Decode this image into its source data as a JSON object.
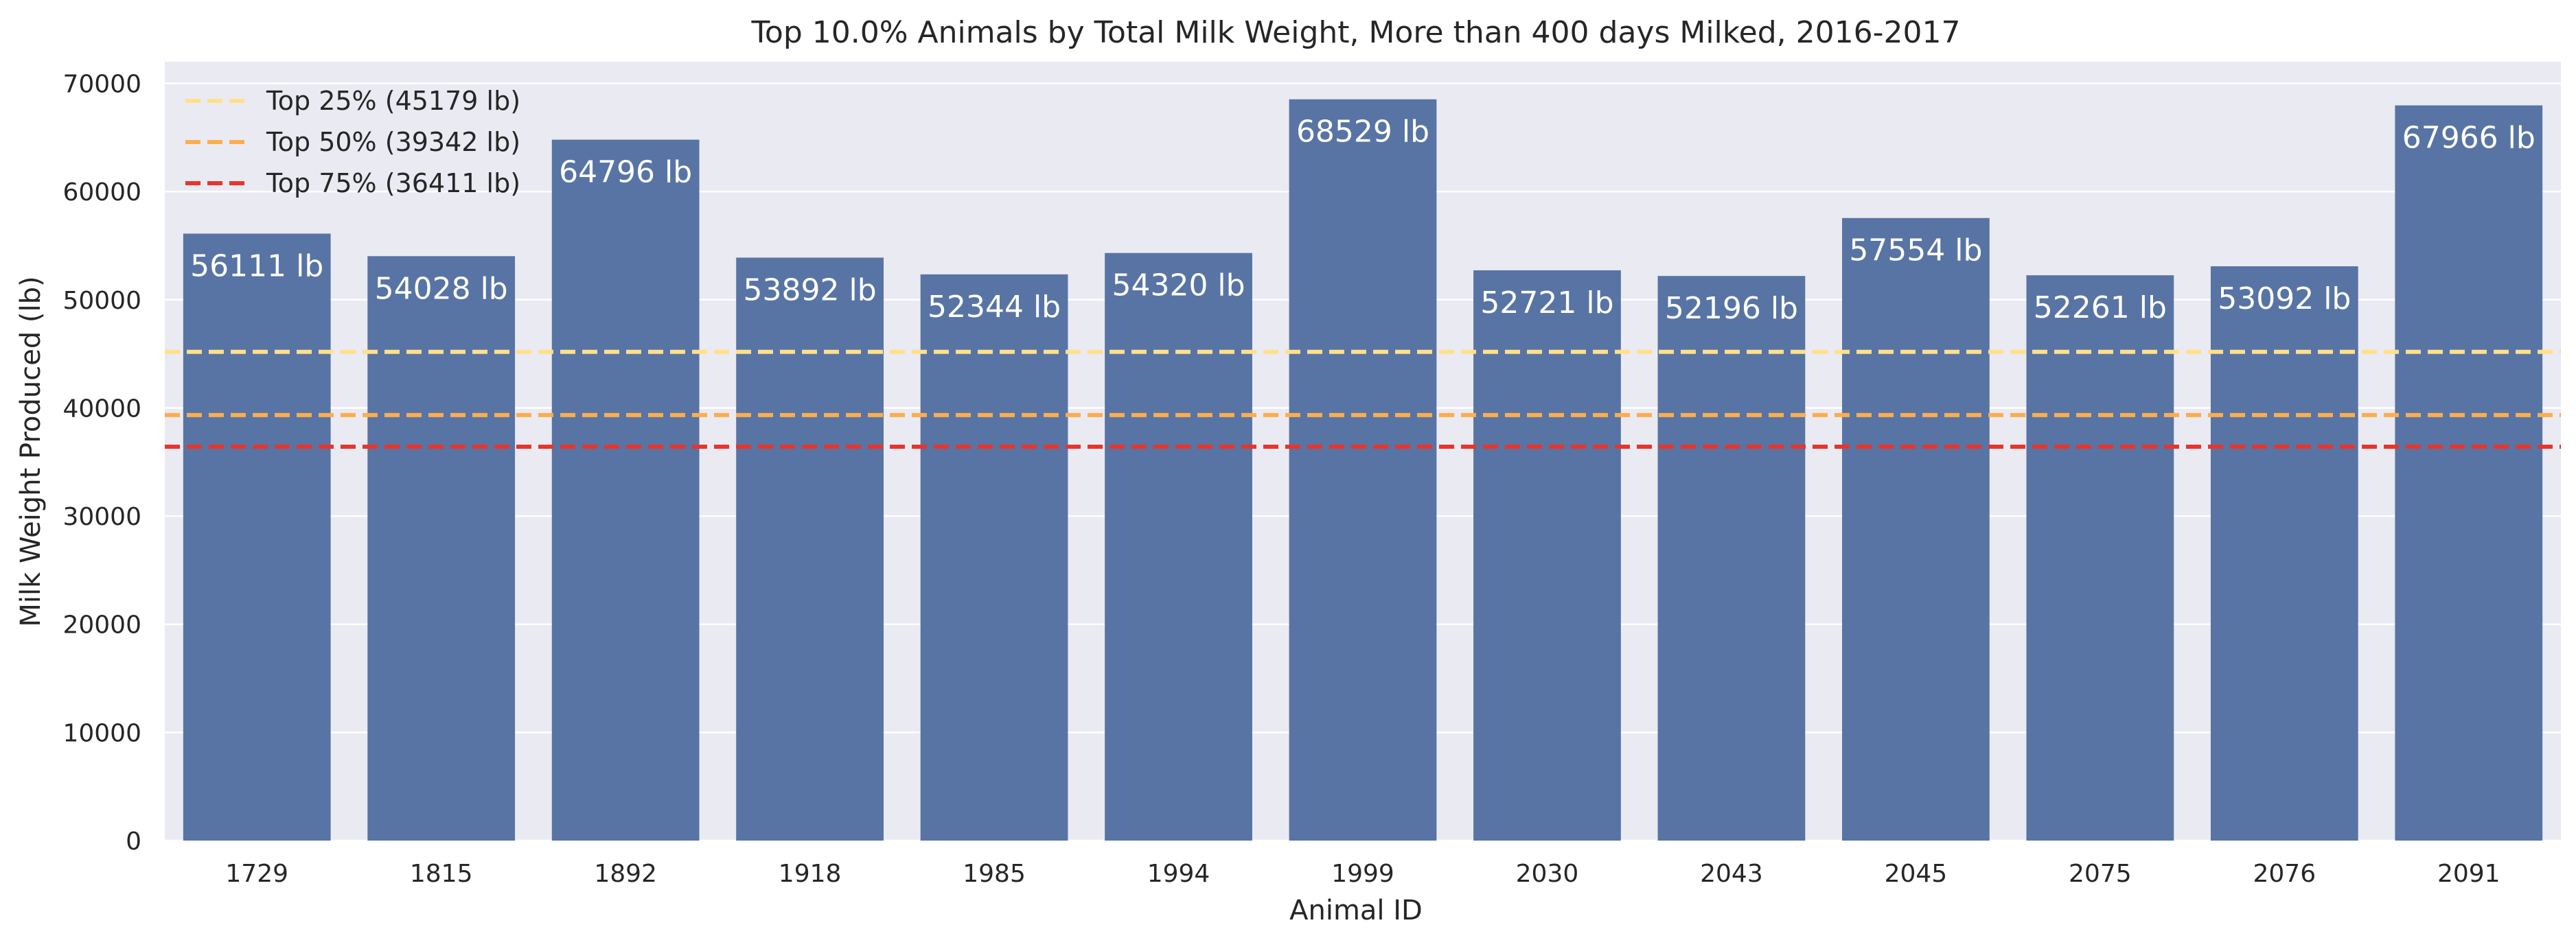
{
  "chart_data": {
    "type": "bar",
    "title": "Top 10.0% Animals by Total Milk Weight, More than 400 days Milked, 2016-2017",
    "xlabel": "Animal ID",
    "ylabel": "Milk Weight Produced (lb)",
    "categories": [
      "1729",
      "1815",
      "1892",
      "1918",
      "1985",
      "1994",
      "1999",
      "2030",
      "2043",
      "2045",
      "2075",
      "2076",
      "2091"
    ],
    "values": [
      56111,
      54028,
      64796,
      53892,
      52344,
      54320,
      68529,
      52721,
      52196,
      57554,
      52261,
      53092,
      67966
    ],
    "bar_labels": [
      "56111 lb",
      "54028 lb",
      "64796 lb",
      "53892 lb",
      "52344 lb",
      "54320 lb",
      "68529 lb",
      "52721 lb",
      "52196 lb",
      "57554 lb",
      "52261 lb",
      "53092 lb",
      "67966 lb"
    ],
    "ylim": [
      0,
      72000
    ],
    "yticks": [
      0,
      10000,
      20000,
      30000,
      40000,
      50000,
      60000,
      70000
    ],
    "grid": true,
    "legend_position": "top-left",
    "bar_color": "#5874a4",
    "plot_background": "#eaeaf2",
    "reference_lines": [
      {
        "label": "Top 25% (45179 lb)",
        "value": 45179,
        "color": "#ffe08a"
      },
      {
        "label": "Top 50% (39342 lb)",
        "value": 39342,
        "color": "#fdad4d"
      },
      {
        "label": "Top 75% (36411 lb)",
        "value": 36411,
        "color": "#e8352c"
      }
    ]
  }
}
